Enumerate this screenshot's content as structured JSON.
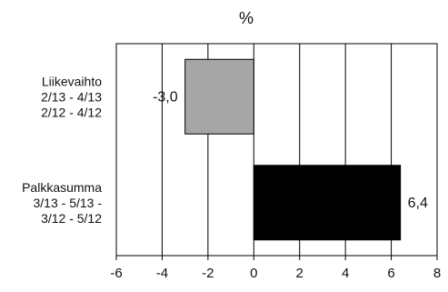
{
  "chart_data": {
    "type": "bar",
    "orientation": "horizontal",
    "title": "%",
    "xlim": [
      -6,
      8
    ],
    "xticks": [
      -6,
      -4,
      -2,
      0,
      2,
      4,
      6,
      8
    ],
    "tick_labels": [
      "-6",
      "-4",
      "-2",
      "0",
      "2",
      "4",
      "6",
      "8"
    ],
    "grid": true,
    "categories": [
      {
        "lines": [
          "Liikevaihto",
          "2/13 - 4/13",
          "2/12 - 4/12"
        ]
      },
      {
        "lines": [
          "Palkkasumma",
          "3/13 - 5/13 -",
          "3/12 - 5/12"
        ]
      }
    ],
    "values": [
      -3.0,
      6.4
    ],
    "value_labels": [
      "-3,0",
      "6,4"
    ],
    "colors": [
      "#a6a6a6",
      "#000000"
    ]
  }
}
